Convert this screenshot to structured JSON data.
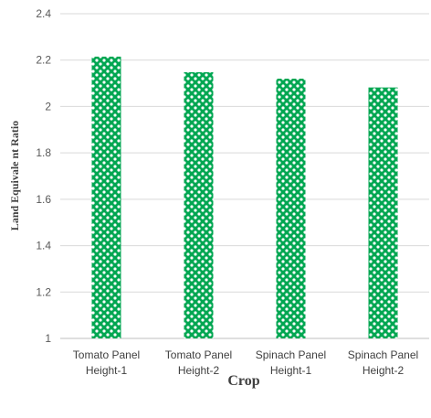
{
  "chart_data": {
    "type": "bar",
    "categories": [
      [
        "Tomato Panel",
        "Height-1"
      ],
      [
        "Tomato Panel",
        "Height-2"
      ],
      [
        "Spinach Panel",
        "Height-1"
      ],
      [
        "Spinach Panel",
        "Height-2"
      ]
    ],
    "values": [
      2.215,
      2.148,
      2.12,
      2.082
    ],
    "xlabel": "Crop",
    "ylabel": "Land Equivale nt  Ratio",
    "ylim": [
      1,
      2.4
    ],
    "yticks": [
      "1",
      "1.2",
      "1.4",
      "1.6",
      "1.8",
      "2",
      "2.2",
      "2.4"
    ],
    "grid": true,
    "colors": {
      "bar": "#00A651",
      "grid": "#D9D9D9",
      "axis": "#BFBFBF"
    }
  }
}
